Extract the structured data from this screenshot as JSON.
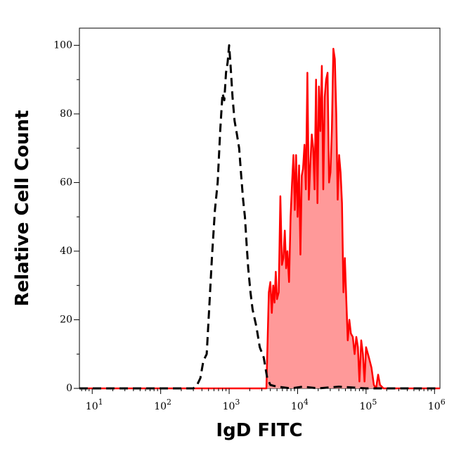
{
  "chart_data": {
    "type": "area",
    "xlabel": "IgD FITC",
    "ylabel": "Relative Cell Count",
    "x_scale": "log10",
    "xlim": [
      6.5,
      1200000
    ],
    "ylim": [
      0,
      105
    ],
    "x_tick_values": [
      10,
      100,
      1000,
      10000,
      100000,
      1000000
    ],
    "x_tick_labels": [
      {
        "base": "10",
        "exp": "1"
      },
      {
        "base": "10",
        "exp": "2"
      },
      {
        "base": "10",
        "exp": "3"
      },
      {
        "base": "10",
        "exp": "4"
      },
      {
        "base": "10",
        "exp": "5"
      },
      {
        "base": "10",
        "exp": "6"
      }
    ],
    "y_ticks": [
      "0",
      "20",
      "40",
      "60",
      "80",
      "100"
    ],
    "grid": false,
    "legend": "none",
    "series": [
      {
        "style": "dashed",
        "color": "#000000",
        "fill": "none",
        "x": [
          6.5,
          300,
          340,
          380,
          420,
          470,
          520,
          560,
          620,
          680,
          740,
          800,
          850,
          900,
          950,
          1000,
          1050,
          1120,
          1200,
          1300,
          1400,
          1500,
          1600,
          1700,
          1800,
          1900,
          2050,
          2200,
          2500,
          2800,
          3200,
          3600,
          4000,
          5000,
          8000,
          12000,
          20000,
          40000,
          100000,
          1200000
        ],
        "y": [
          0,
          0,
          1,
          3,
          8,
          10,
          26,
          38,
          52,
          60,
          75,
          86,
          84,
          92,
          95,
          100,
          94,
          85,
          78,
          74,
          70,
          62,
          55,
          50,
          42,
          35,
          28,
          23,
          18,
          12,
          9,
          3,
          1,
          0.5,
          0,
          0.5,
          0,
          0.5,
          0,
          0
        ]
      },
      {
        "style": "solid",
        "color": "#ff0000",
        "fill": "#ff9999",
        "x": [
          6.5,
          3500,
          3800,
          4000,
          4200,
          4400,
          4600,
          4800,
          5000,
          5300,
          5600,
          5900,
          6200,
          6500,
          6800,
          7100,
          7500,
          7900,
          8300,
          8700,
          9100,
          9500,
          10000,
          10500,
          11000,
          11500,
          12000,
          12600,
          13200,
          13900,
          14600,
          15300,
          16100,
          16900,
          17700,
          18600,
          19500,
          20500,
          21500,
          22600,
          23700,
          24900,
          26100,
          27400,
          28800,
          30200,
          31700,
          33300,
          35000,
          36700,
          38500,
          40400,
          42400,
          44500,
          46700,
          49000,
          51400,
          54000,
          57000,
          60000,
          64000,
          68000,
          72000,
          76000,
          80000,
          85000,
          90000,
          95000,
          100000,
          110000,
          120000,
          130000,
          140000,
          150000,
          160000,
          180000,
          200000,
          250000,
          300000,
          1200000
        ],
        "y": [
          0,
          0,
          28,
          31,
          22,
          30,
          25,
          34,
          26,
          28,
          56,
          36,
          38,
          46,
          35,
          40,
          31,
          50,
          60,
          68,
          52,
          68,
          50,
          65,
          39,
          62,
          64,
          71,
          58,
          92,
          55,
          65,
          74,
          70,
          58,
          90,
          54,
          88,
          75,
          94,
          58,
          85,
          90,
          92,
          60,
          63,
          76,
          99,
          96,
          80,
          55,
          68,
          63,
          54,
          28,
          38,
          26,
          14,
          20,
          16,
          15,
          10,
          15,
          12,
          2,
          14,
          10,
          2,
          12,
          9,
          6,
          1,
          0,
          4,
          1,
          0,
          0,
          0,
          0,
          0
        ]
      }
    ]
  }
}
